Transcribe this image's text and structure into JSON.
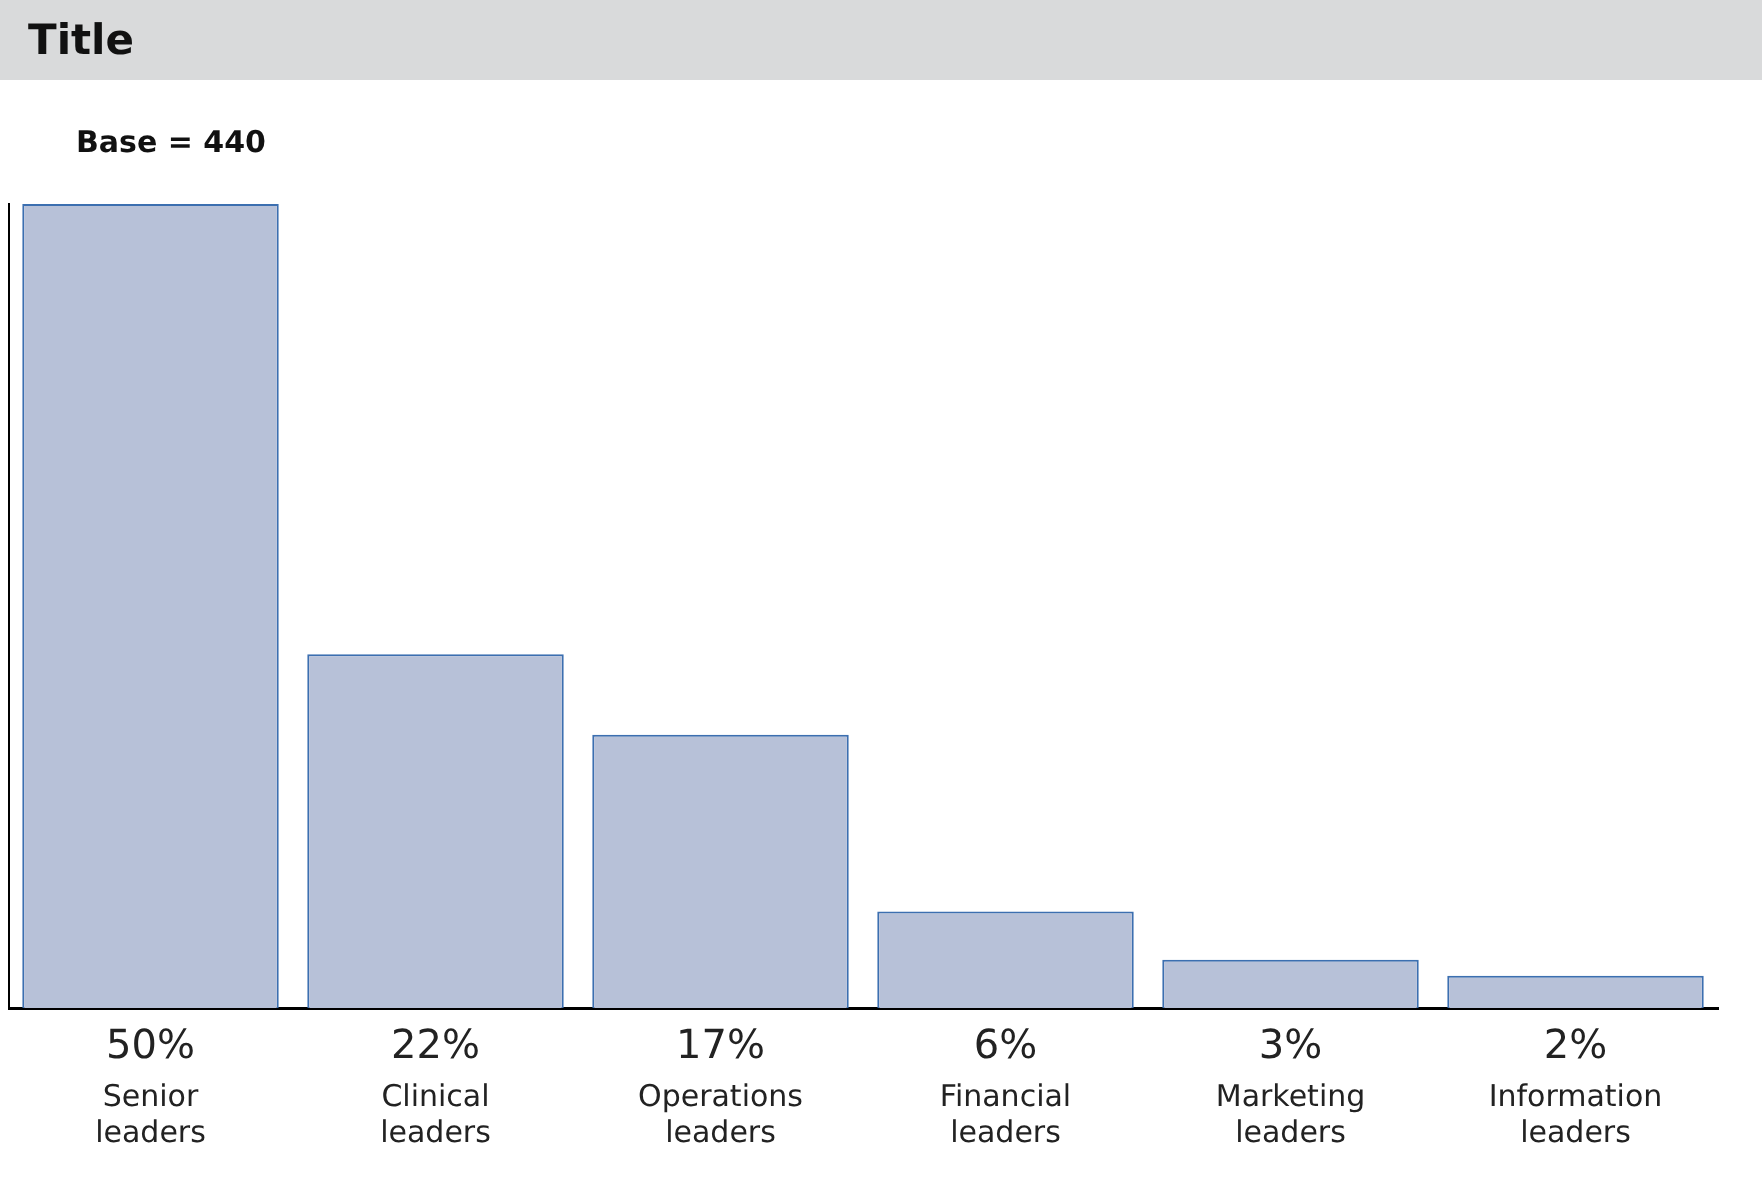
{
  "chart_data": {
    "type": "bar",
    "title": "Title",
    "subtitle": "Base = 440",
    "categories": [
      "Senior leaders",
      "Clinical leaders",
      "Operations leaders",
      "Financial leaders",
      "Marketing leaders",
      "Information leaders"
    ],
    "values": [
      50,
      22,
      17,
      6,
      3,
      2
    ],
    "value_labels": [
      "50%",
      "22%",
      "17%",
      "6%",
      "3%",
      "2%"
    ],
    "color": "#b7c1d8",
    "grid": false,
    "legend": false
  }
}
